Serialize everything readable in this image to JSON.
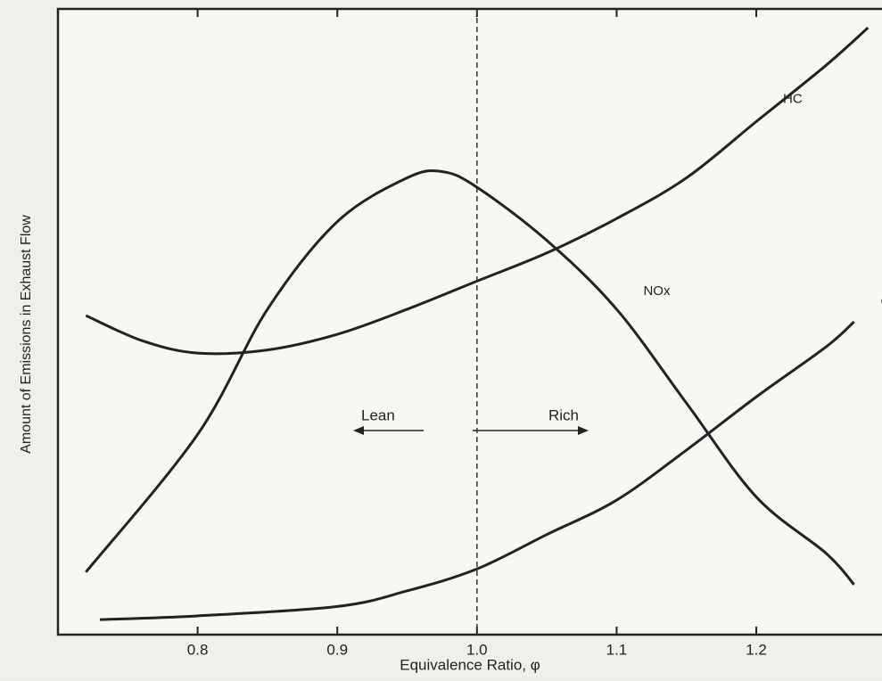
{
  "chart_data": {
    "type": "line",
    "xlabel": "Equivalence Ratio, φ",
    "ylabel": "Amount of Emissions in Exhaust Flow",
    "xlim": [
      0.7,
      1.29
    ],
    "ylim": [
      0,
      100
    ],
    "xticks": [
      0.8,
      0.9,
      {
        "value": 1,
        "label": "1.0"
      },
      1.1,
      1.2
    ],
    "vline": 1,
    "annotations": [
      "Lean",
      "Rich"
    ],
    "series": [
      {
        "name": "HC",
        "color": "#222222",
        "x": [
          0.72,
          0.76,
          0.8,
          0.85,
          0.9,
          0.95,
          1.0,
          1.05,
          1.1,
          1.15,
          1.2,
          1.25,
          1.28
        ],
        "values": [
          51,
          47,
          45,
          45.5,
          48,
          52,
          56.5,
          61,
          66.5,
          73,
          82,
          91,
          97
        ]
      },
      {
        "name": "NOx",
        "color": "#222222",
        "x": [
          0.72,
          0.8,
          0.85,
          0.9,
          0.95,
          0.975,
          1.0,
          1.05,
          1.1,
          1.15,
          1.2,
          1.25,
          1.27
        ],
        "values": [
          10,
          32,
          52,
          66,
          73,
          74,
          71.5,
          63,
          52,
          37,
          22,
          13,
          8
        ]
      },
      {
        "name": "CO",
        "color": "#222222",
        "x": [
          0.73,
          0.8,
          0.9,
          0.95,
          1.0,
          1.05,
          1.1,
          1.15,
          1.2,
          1.25,
          1.27
        ],
        "values": [
          2.4,
          3,
          4.5,
          7,
          10.5,
          16,
          21.5,
          29.5,
          38,
          46,
          50
        ]
      }
    ]
  }
}
